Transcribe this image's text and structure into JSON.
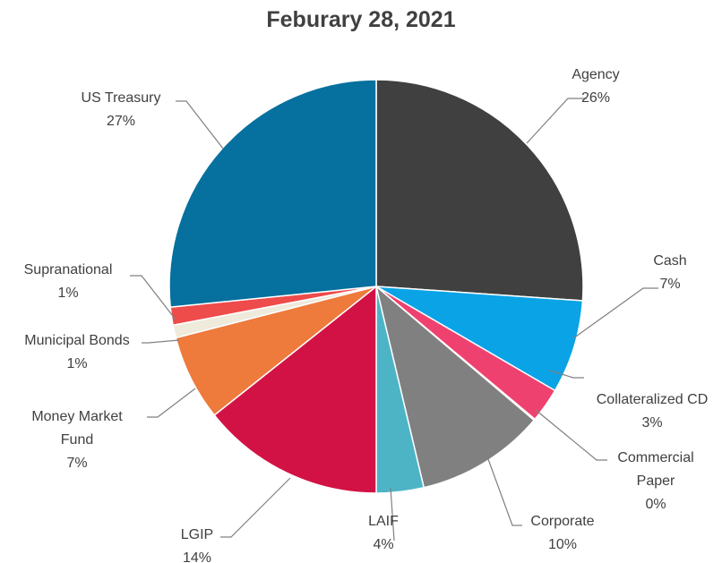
{
  "chart_data": {
    "type": "pie",
    "title": "Feburary 28, 2021",
    "slices": [
      {
        "name": "Agency",
        "value": 26.1,
        "percent_label": "26%",
        "color": "#404040"
      },
      {
        "name": "Cash",
        "value": 7.3,
        "percent_label": "7%",
        "color": "#0aa3e6"
      },
      {
        "name": "Collateralized CD",
        "value": 2.7,
        "percent_label": "3%",
        "color": "#ef416f"
      },
      {
        "name": "Commercial Paper",
        "value": 0.1,
        "percent_label": "0%",
        "color": "#5a5a5a"
      },
      {
        "name": "Corporate",
        "value": 10.1,
        "percent_label": "10%",
        "color": "#808080"
      },
      {
        "name": "LAIF",
        "value": 3.7,
        "percent_label": "4%",
        "color": "#4db4c6"
      },
      {
        "name": "LGIP",
        "value": 14.3,
        "percent_label": "14%",
        "color": "#d21245"
      },
      {
        "name": "Money Market Fund",
        "value": 6.7,
        "percent_label": "7%",
        "color": "#ee7a3c"
      },
      {
        "name": "Municipal Bonds",
        "value": 1.0,
        "percent_label": "1%",
        "color": "#eeeadc"
      },
      {
        "name": "Supranational",
        "value": 1.4,
        "percent_label": "1%",
        "color": "#ee4b4b"
      },
      {
        "name": "US Treasury",
        "value": 26.6,
        "percent_label": "27%",
        "color": "#06709e"
      }
    ]
  }
}
